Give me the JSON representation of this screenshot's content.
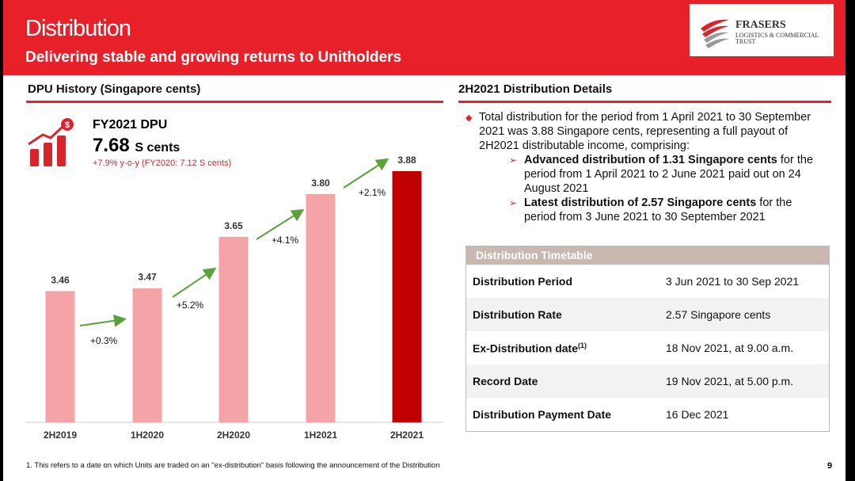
{
  "header": {
    "title": "Distribution",
    "subtitle": "Delivering stable and growing returns to Unitholders",
    "logo_line1": "FRASERS",
    "logo_line2": "LOGISTICS & COMMERCIAL",
    "logo_line3": "TRUST"
  },
  "left": {
    "section_title": "DPU History (Singapore cents)",
    "fy_label": "FY2021 DPU",
    "fy_value": "7.68",
    "fy_unit": "S cents",
    "fy_note": "+7.9% y-o-y (FY2020: 7.12 S cents)"
  },
  "right": {
    "section_title": "2H2021 Distribution Details",
    "bullet": "Total distribution for the period from 1 April 2021 to 30 September 2021 was 3.88 Singapore cents, representing a full payout of 2H2021 distributable income, comprising:",
    "sub1_bold": "Advanced distribution of 1.31 Singapore cents",
    "sub1_rest": " for the period from 1 April 2021 to 2 June 2021 paid out on 24 August 2021",
    "sub2_bold": "Latest distribution of 2.57 Singapore cents",
    "sub2_rest": " for the period from 3 June 2021 to 30 September 2021"
  },
  "timetable": {
    "title": "Distribution Timetable",
    "rows": [
      {
        "key": "Distribution Period",
        "value": "3 Jun 2021 to 30 Sep 2021"
      },
      {
        "key": "Distribution Rate",
        "value": "2.57 Singapore cents"
      },
      {
        "key": "Ex-Distribution date",
        "sup": "(1)",
        "value": "18 Nov 2021, at 9.00 a.m."
      },
      {
        "key": "Record Date",
        "value": "19 Nov 2021, at 5.00 p.m."
      },
      {
        "key": "Distribution Payment Date",
        "value": "16 Dec 2021"
      }
    ]
  },
  "footnote": "1. This refers to a date on which Units are traded on an \"ex-distribution\" basis following the announcement of the Distribution",
  "page_number": "9",
  "colors": {
    "accent": "#e8202a",
    "bar_light": "#f4a3a6",
    "bar_dark": "#c00000",
    "arrow": "#5aa23a"
  },
  "chart_data": {
    "type": "bar",
    "categories": [
      "2H2019",
      "1H2020",
      "2H2020",
      "1H2021",
      "2H2021"
    ],
    "values": [
      3.46,
      3.47,
      3.65,
      3.8,
      3.88
    ],
    "value_labels": [
      "3.46",
      "3.47",
      "3.65",
      "3.80",
      "3.88"
    ],
    "growth_labels": [
      "+0.3%",
      "+5.2%",
      "+4.1%",
      "+2.1%"
    ],
    "highlight_index": 4,
    "ylim": [
      3.0,
      3.95
    ]
  }
}
